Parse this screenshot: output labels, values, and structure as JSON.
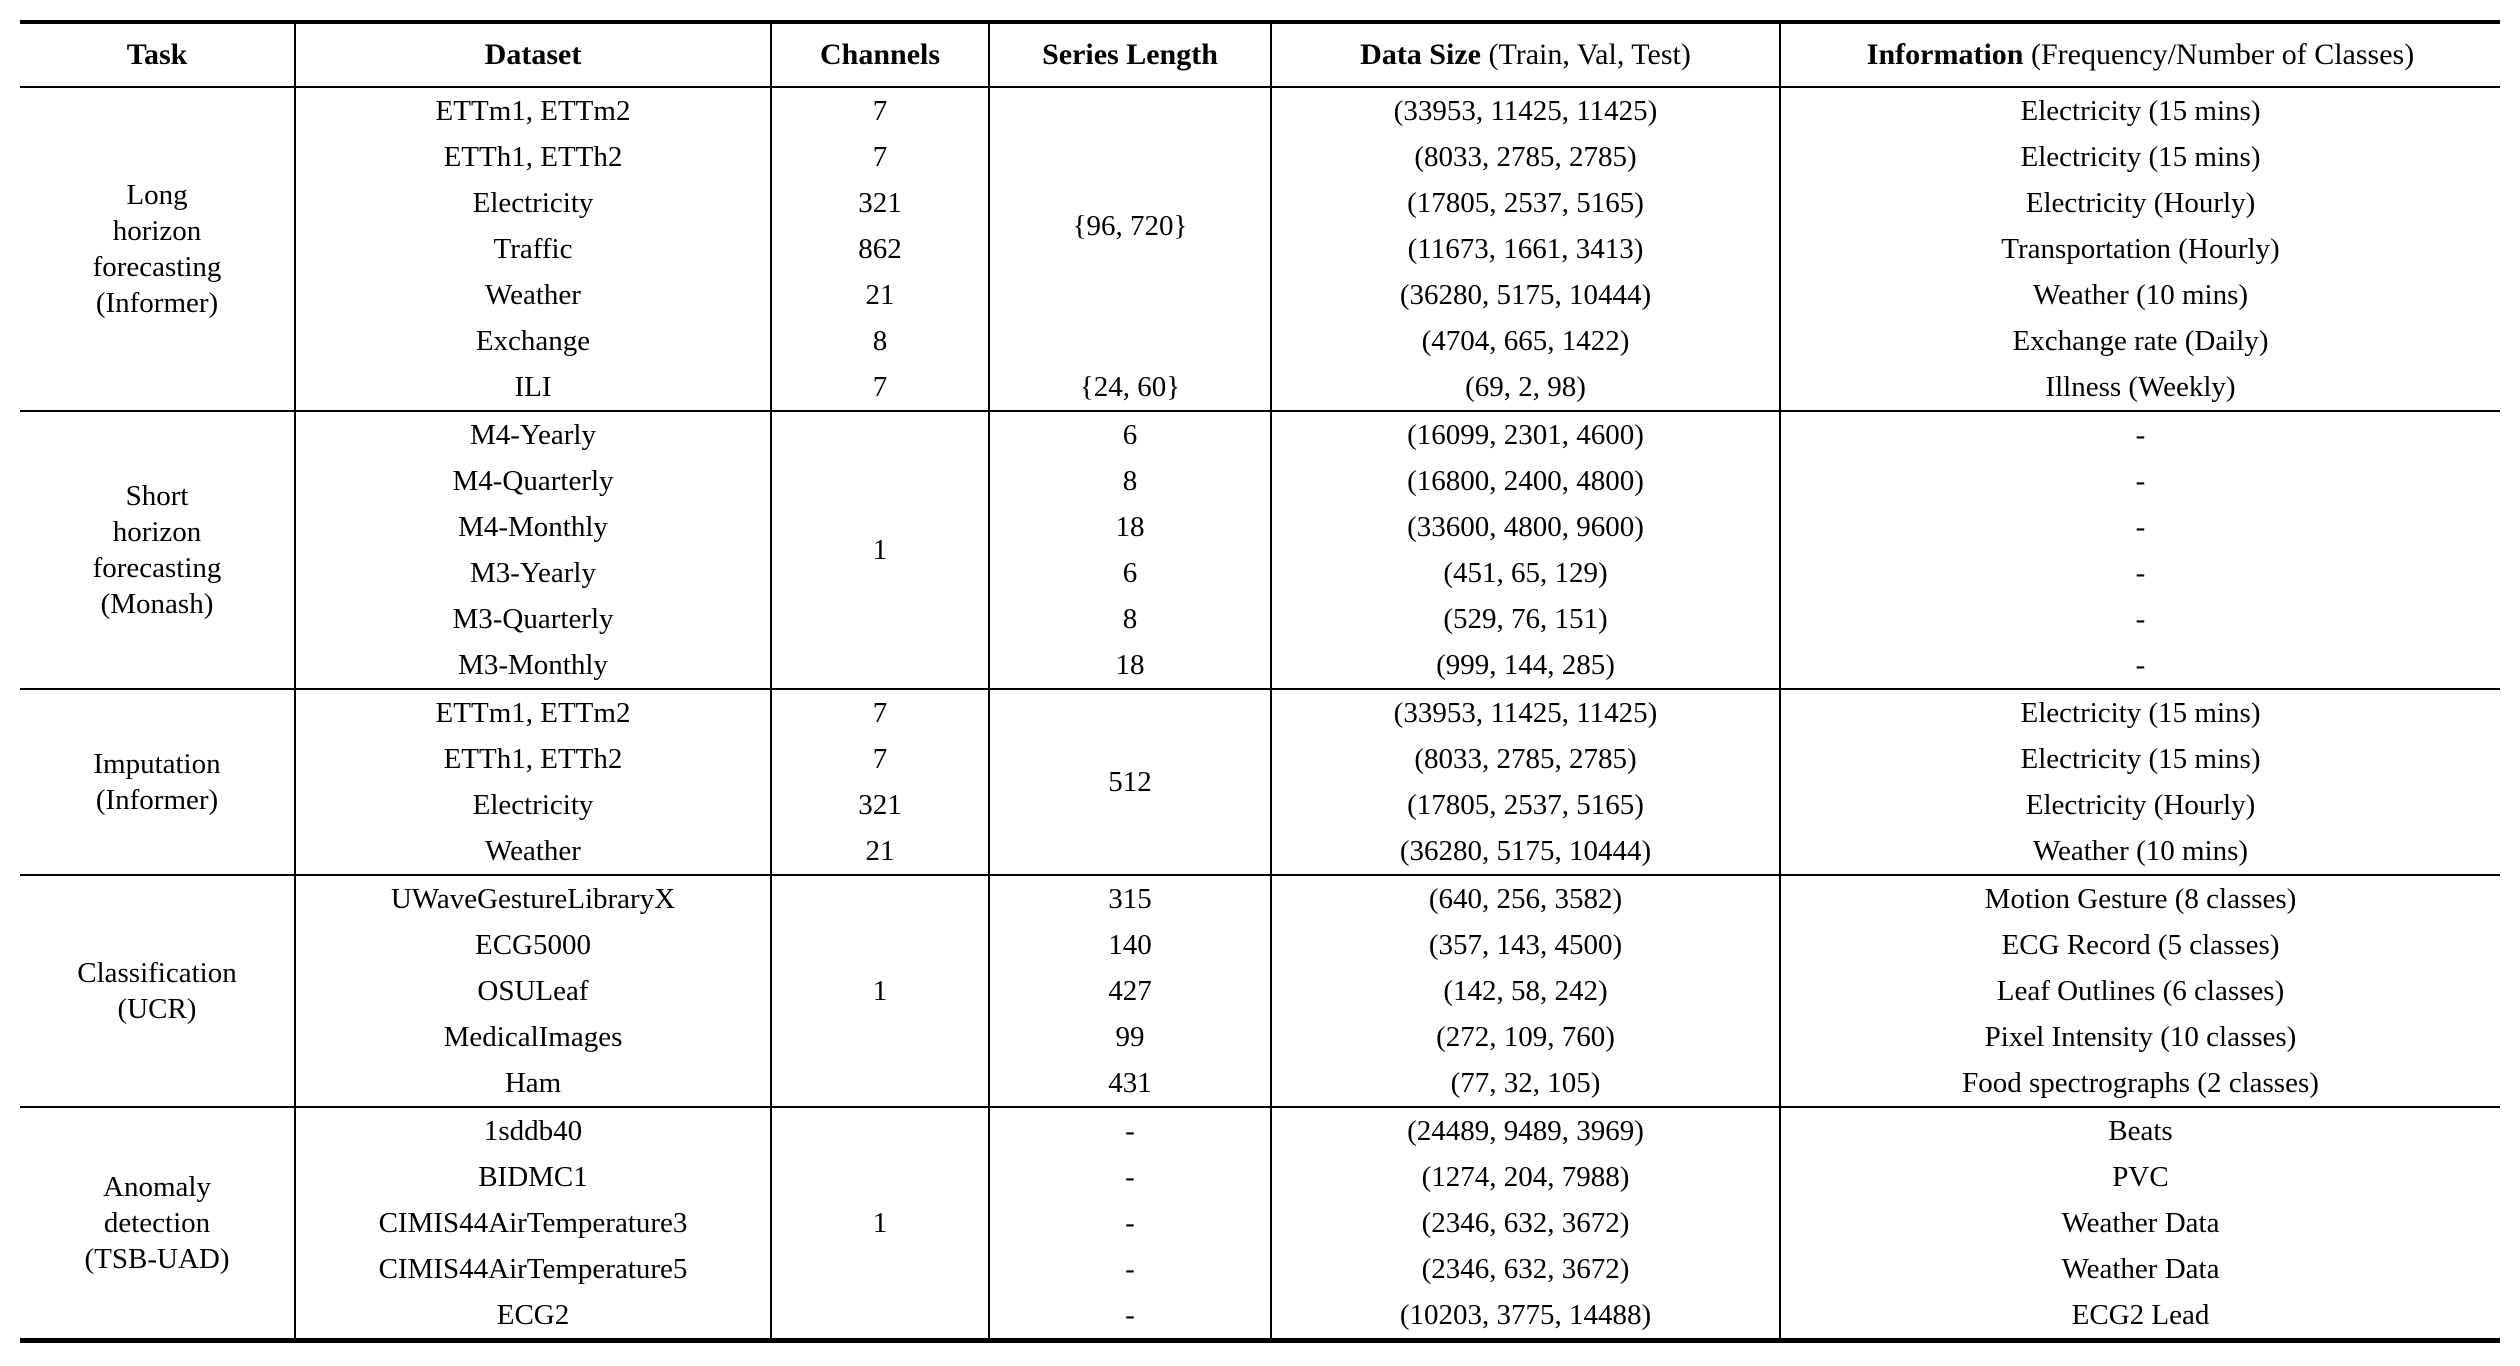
{
  "header": {
    "columns": [
      {
        "bold": "Task",
        "normal": ""
      },
      {
        "bold": "Dataset",
        "normal": ""
      },
      {
        "bold": "Channels",
        "normal": ""
      },
      {
        "bold": "Series Length",
        "normal": ""
      },
      {
        "bold": "Data Size",
        "normal": " (Train, Val, Test)"
      },
      {
        "bold": "Information",
        "normal": " (Frequency/Number of Classes)"
      }
    ]
  },
  "blocks": [
    {
      "task": "Long\nhorizon\nforecasting\n(Informer)",
      "series_length_merged": "{96, 720}",
      "rows": [
        {
          "dataset": "ETTm1, ETTm2",
          "channels": "7",
          "data_size": "(33953, 11425, 11425)",
          "info": "Electricity (15 mins)"
        },
        {
          "dataset": "ETTh1, ETTh2",
          "channels": "7",
          "data_size": "(8033, 2785, 2785)",
          "info": "Electricity (15 mins)"
        },
        {
          "dataset": "Electricity",
          "channels": "321",
          "data_size": "(17805, 2537, 5165)",
          "info": "Electricity (Hourly)"
        },
        {
          "dataset": "Traffic",
          "channels": "862",
          "data_size": "(11673, 1661, 3413)",
          "info": "Transportation (Hourly)"
        },
        {
          "dataset": "Weather",
          "channels": "21",
          "data_size": "(36280, 5175, 10444)",
          "info": "Weather (10 mins)"
        },
        {
          "dataset": "Exchange",
          "channels": "8",
          "data_size": "(4704, 665, 1422)",
          "info": "Exchange rate (Daily)"
        },
        {
          "dataset": "ILI",
          "channels": "7",
          "series_length": "{24, 60}",
          "data_size": "(69, 2, 98)",
          "info": "Illness (Weekly)"
        }
      ]
    },
    {
      "task": "Short\nhorizon\nforecasting\n(Monash)",
      "channels_merged": "1",
      "rows": [
        {
          "dataset": "M4-Yearly",
          "series_length": "6",
          "data_size": "(16099, 2301, 4600)",
          "info": "-"
        },
        {
          "dataset": "M4-Quarterly",
          "series_length": "8",
          "data_size": "(16800, 2400, 4800)",
          "info": "-"
        },
        {
          "dataset": "M4-Monthly",
          "series_length": "18",
          "data_size": "(33600, 4800, 9600)",
          "info": "-"
        },
        {
          "dataset": "M3-Yearly",
          "series_length": "6",
          "data_size": "(451, 65, 129)",
          "info": "-"
        },
        {
          "dataset": "M3-Quarterly",
          "series_length": "8",
          "data_size": "(529, 76, 151)",
          "info": "-"
        },
        {
          "dataset": "M3-Monthly",
          "series_length": "18",
          "data_size": "(999, 144, 285)",
          "info": "-"
        }
      ]
    },
    {
      "task": "Imputation\n(Informer)",
      "series_length_merged": "512",
      "rows": [
        {
          "dataset": "ETTm1, ETTm2",
          "channels": "7",
          "data_size": "(33953, 11425, 11425)",
          "info": "Electricity (15 mins)"
        },
        {
          "dataset": "ETTh1, ETTh2",
          "channels": "7",
          "data_size": "(8033, 2785, 2785)",
          "info": "Electricity (15 mins)"
        },
        {
          "dataset": "Electricity",
          "channels": "321",
          "data_size": "(17805, 2537, 5165)",
          "info": "Electricity (Hourly)"
        },
        {
          "dataset": "Weather",
          "channels": "21",
          "data_size": "(36280, 5175, 10444)",
          "info": "Weather (10 mins)"
        }
      ]
    },
    {
      "task": "Classification\n(UCR)",
      "channels_merged": "1",
      "rows": [
        {
          "dataset": "UWaveGestureLibraryX",
          "series_length": "315",
          "data_size": "(640, 256, 3582)",
          "info": "Motion Gesture (8 classes)"
        },
        {
          "dataset": "ECG5000",
          "series_length": "140",
          "data_size": "(357, 143, 4500)",
          "info": "ECG Record (5 classes)"
        },
        {
          "dataset": "OSULeaf",
          "series_length": "427",
          "data_size": "(142, 58, 242)",
          "info": "Leaf Outlines (6 classes)"
        },
        {
          "dataset": "MedicalImages",
          "series_length": "99",
          "data_size": "(272, 109, 760)",
          "info": "Pixel Intensity (10 classes)"
        },
        {
          "dataset": "Ham",
          "series_length": "431",
          "data_size": "(77, 32, 105)",
          "info": "Food spectrographs (2 classes)"
        }
      ]
    },
    {
      "task": "Anomaly\ndetection\n(TSB-UAD)",
      "channels_merged": "1",
      "rows": [
        {
          "dataset": "1sddb40",
          "series_length": "-",
          "data_size": "(24489, 9489, 3969)",
          "info": "Beats"
        },
        {
          "dataset": "BIDMC1",
          "series_length": "-",
          "data_size": "(1274, 204, 7988)",
          "info": "PVC"
        },
        {
          "dataset": "CIMIS44AirTemperature3",
          "series_length": "-",
          "data_size": "(2346, 632, 3672)",
          "info": "Weather Data"
        },
        {
          "dataset": "CIMIS44AirTemperature5",
          "series_length": "-",
          "data_size": "(2346, 632, 3672)",
          "info": "Weather Data"
        },
        {
          "dataset": "ECG2",
          "series_length": "-",
          "data_size": "(10203, 3775, 14488)",
          "info": "ECG2 Lead"
        }
      ]
    }
  ]
}
